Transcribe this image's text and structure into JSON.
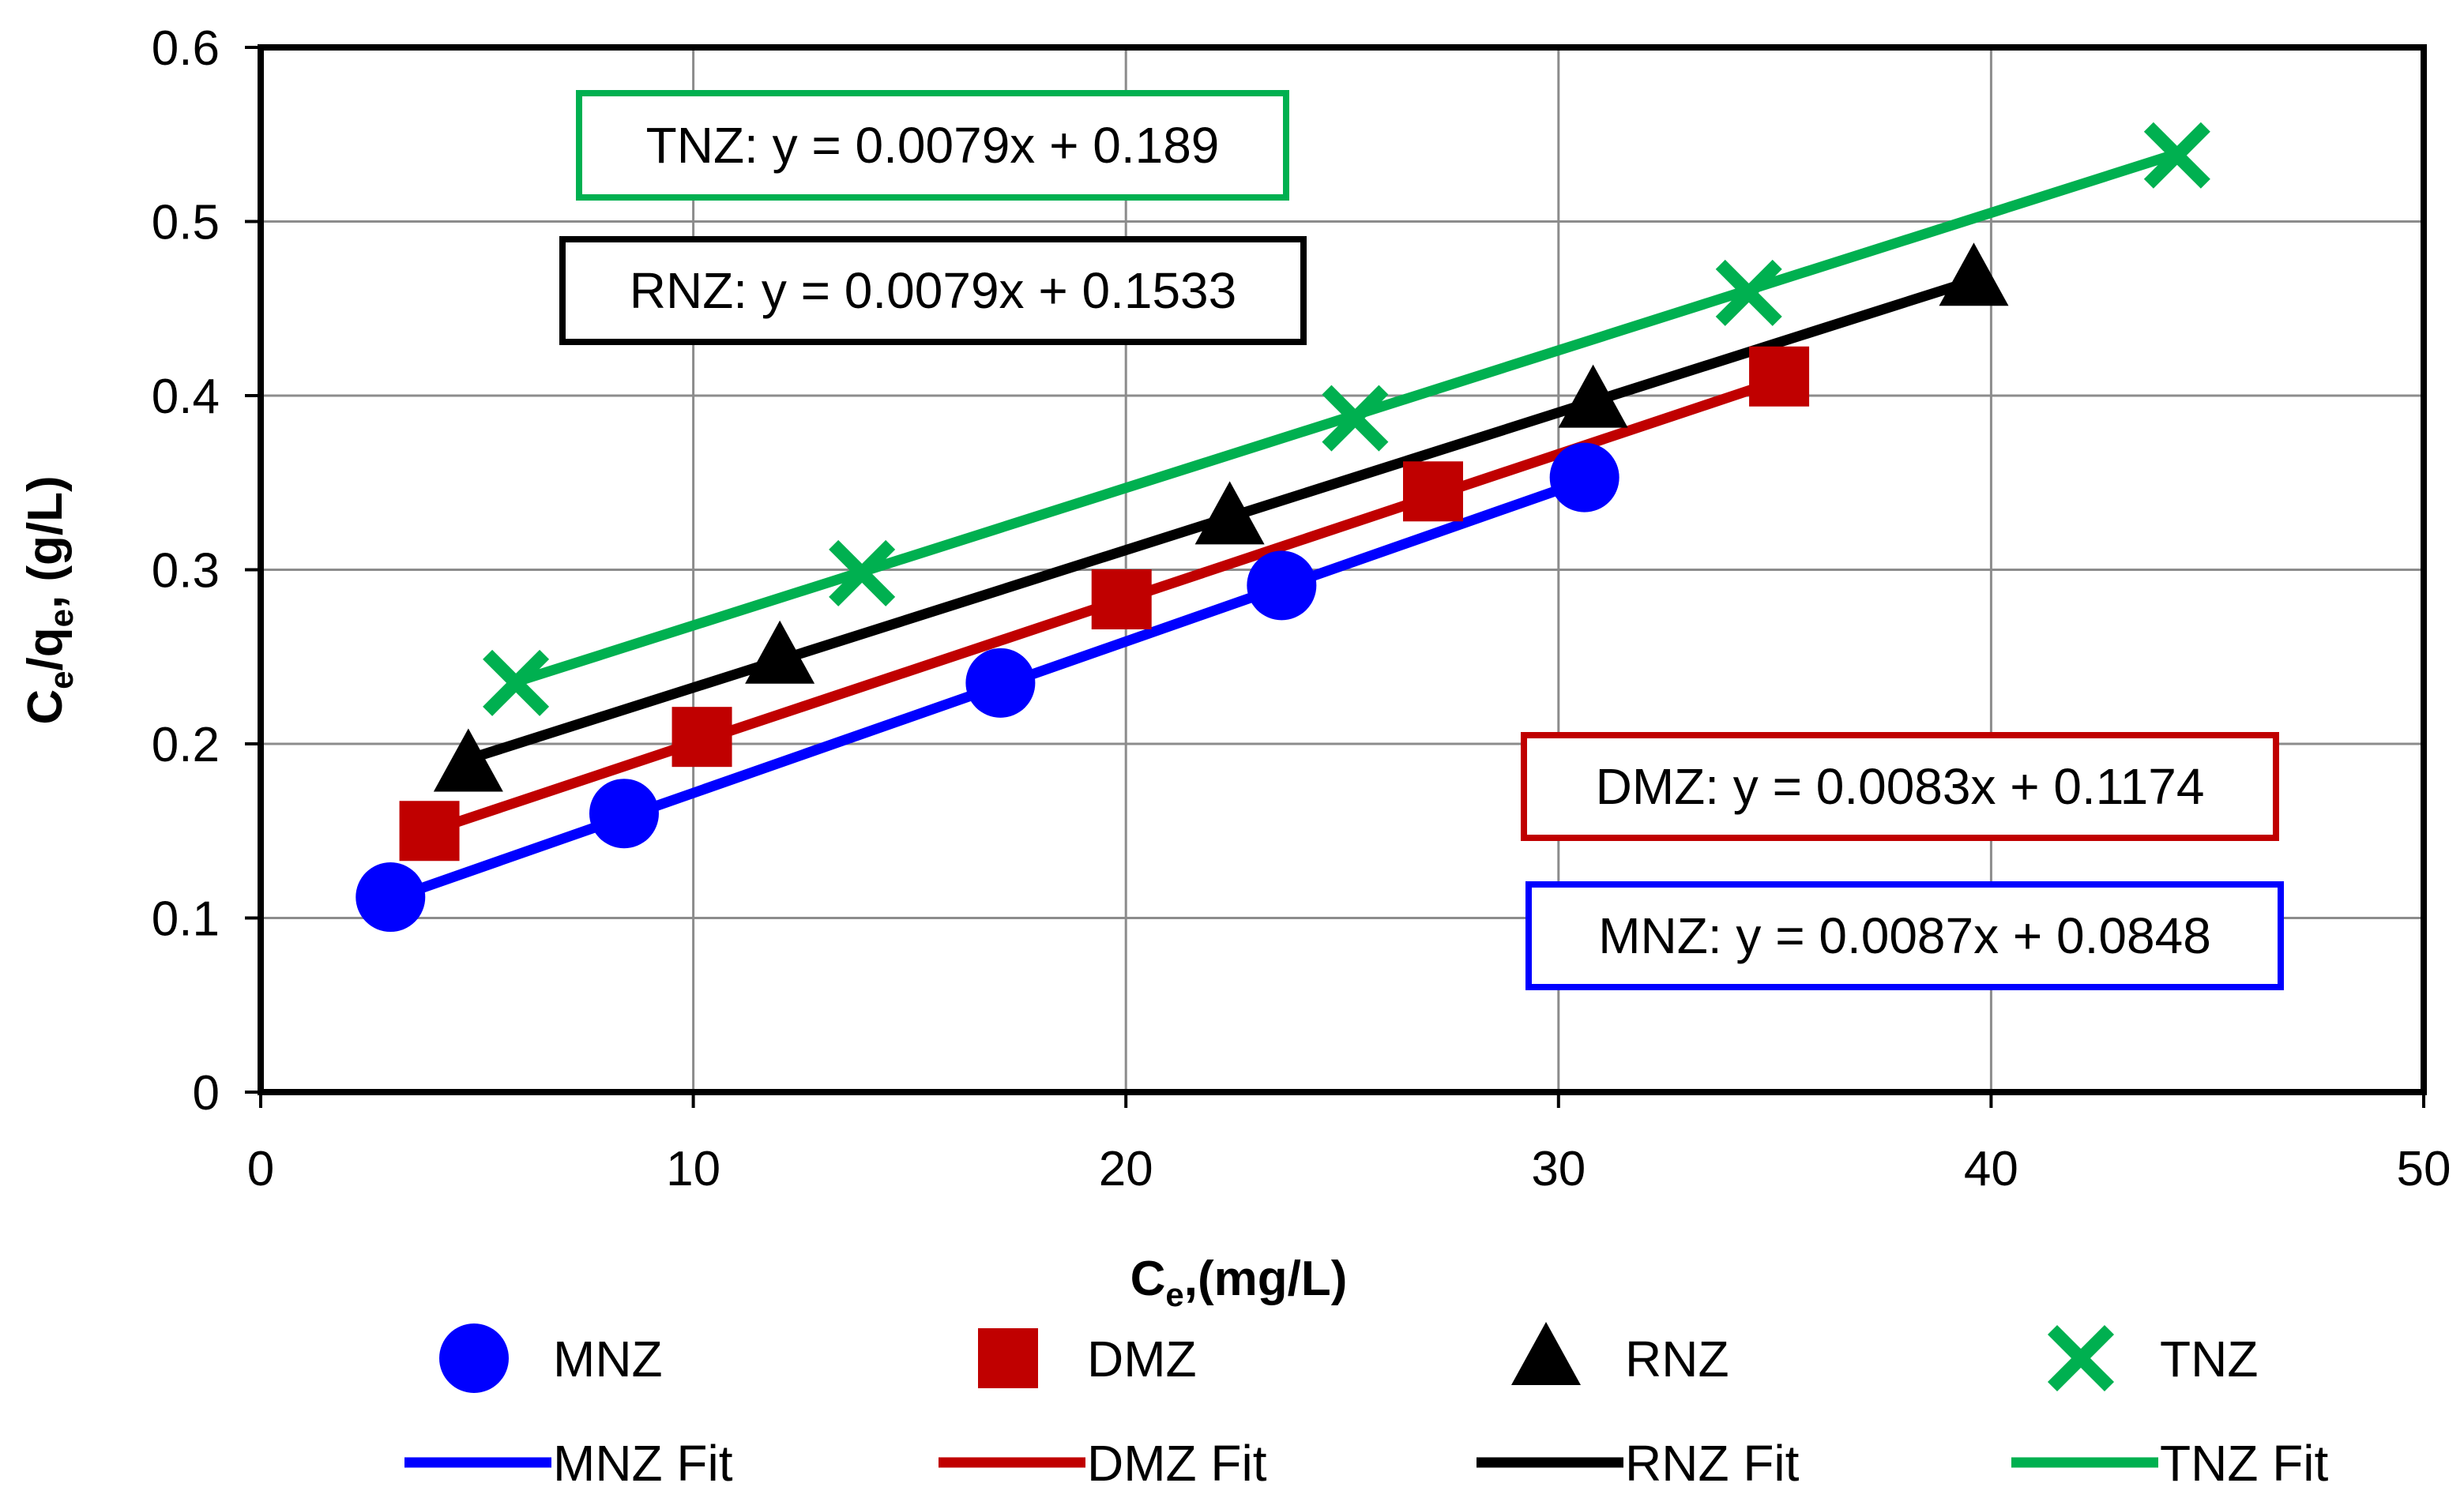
{
  "chart_data": {
    "type": "scatter",
    "xlabel": {
      "main": "C",
      "sub": "e",
      "rest": ",(mg/L)"
    },
    "ylabel": {
      "c": "C",
      "c_sub": "e",
      "slash": "/q",
      "q_sub": "e",
      "rest": ", (g/L)"
    },
    "xlim": [
      0,
      50
    ],
    "ylim": [
      0,
      0.6
    ],
    "x_ticks": [
      0,
      10,
      20,
      30,
      40,
      50
    ],
    "y_ticks": [
      0,
      0.1,
      0.2,
      0.3,
      0.4,
      0.5,
      0.6
    ],
    "x_tick_labels": [
      "0",
      "10",
      "20",
      "30",
      "40",
      "50"
    ],
    "y_tick_labels": [
      "0",
      "0.1",
      "0.2",
      "0.3",
      "0.4",
      "0.5",
      "0.6"
    ],
    "grid": true,
    "legend_position": "bottom",
    "series": [
      {
        "name": "MNZ",
        "fit_name": "MNZ Fit",
        "color": "#0000FF",
        "marker": "circle",
        "equation": "MNZ: y = 0.0087x + 0.0848",
        "slope": 0.0087,
        "intercept": 0.0848,
        "x": [
          3.0,
          8.4,
          17.1,
          23.6,
          30.6
        ],
        "y": [
          0.112,
          0.16,
          0.235,
          0.291,
          0.353
        ]
      },
      {
        "name": "DMZ",
        "fit_name": "DMZ Fit",
        "color": "#C00000",
        "marker": "square",
        "equation": "DMZ: y = 0.0083x + 0.1174",
        "slope": 0.0083,
        "intercept": 0.1174,
        "x": [
          3.9,
          10.2,
          19.9,
          27.1,
          35.1
        ],
        "y": [
          0.15,
          0.204,
          0.283,
          0.345,
          0.411
        ]
      },
      {
        "name": "RNZ",
        "fit_name": "RNZ Fit",
        "color": "#000000",
        "marker": "triangle",
        "equation": "RNZ: y = 0.0079x + 0.1533",
        "slope": 0.0079,
        "intercept": 0.1533,
        "x": [
          4.8,
          12.0,
          22.4,
          30.8,
          39.6
        ],
        "y": [
          0.188,
          0.25,
          0.33,
          0.397,
          0.467
        ]
      },
      {
        "name": "TNZ",
        "fit_name": "TNZ Fit",
        "color": "#00B050",
        "marker": "x",
        "equation": "TNZ: y = 0.0079x + 0.189",
        "slope": 0.0079,
        "intercept": 0.189,
        "x": [
          5.9,
          13.9,
          25.3,
          34.4,
          44.3
        ],
        "y": [
          0.235,
          0.298,
          0.387,
          0.459,
          0.538
        ]
      }
    ]
  }
}
